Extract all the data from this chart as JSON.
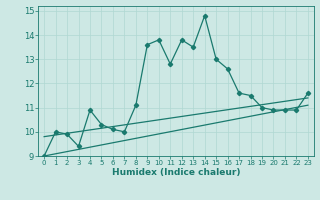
{
  "title": "",
  "xlabel": "Humidex (Indice chaleur)",
  "background_color": "#cde8e4",
  "grid_color": "#b0d8d2",
  "line_color": "#1a7a6e",
  "xlim": [
    -0.5,
    23.5
  ],
  "ylim": [
    9,
    15.2
  ],
  "xticks": [
    0,
    1,
    2,
    3,
    4,
    5,
    6,
    7,
    8,
    9,
    10,
    11,
    12,
    13,
    14,
    15,
    16,
    17,
    18,
    19,
    20,
    21,
    22,
    23
  ],
  "yticks": [
    9,
    10,
    11,
    12,
    13,
    14,
    15
  ],
  "series1_x": [
    0,
    1,
    2,
    3,
    4,
    5,
    6,
    7,
    8,
    9,
    10,
    11,
    12,
    13,
    14,
    15,
    16,
    17,
    18,
    19,
    20,
    21,
    22,
    23
  ],
  "series1_y": [
    9.0,
    10.0,
    9.9,
    9.4,
    10.9,
    10.3,
    10.1,
    10.0,
    11.1,
    13.6,
    13.8,
    12.8,
    13.8,
    13.5,
    14.8,
    13.0,
    12.6,
    11.6,
    11.5,
    11.0,
    10.9,
    10.9,
    10.9,
    11.6
  ],
  "series2_x": [
    0,
    23
  ],
  "series2_y": [
    9.0,
    11.1
  ],
  "series3_x": [
    0,
    23
  ],
  "series3_y": [
    9.8,
    11.4
  ]
}
